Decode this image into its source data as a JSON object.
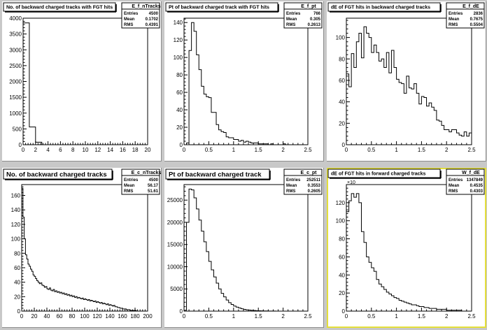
{
  "canvas": {
    "background": "#c8c8c8",
    "highlight_color": "#e4df3a"
  },
  "chart_data": [
    {
      "type": "bar",
      "name": "E_f_nTracks",
      "title": "No. of backward charged tracks with FGT hits",
      "stats": {
        "name": "E_f_nTracks",
        "entries": "4500",
        "mean": "0.1702",
        "rms": "0.4391"
      },
      "xlim": [
        0,
        20
      ],
      "ylim": [
        0,
        4000
      ],
      "x_ticks": [
        0,
        2,
        4,
        6,
        8,
        10,
        12,
        14,
        16,
        18,
        20
      ],
      "y_ticks": [
        0,
        500,
        1000,
        1500,
        2000,
        2500,
        3000,
        3500,
        4000
      ],
      "bin_edges": [
        0,
        1,
        2,
        3,
        4,
        5,
        6,
        7,
        8,
        9,
        10,
        11,
        12,
        13,
        14,
        15,
        16,
        17,
        18,
        19,
        20
      ],
      "values": [
        3850,
        560,
        80,
        0,
        0,
        0,
        0,
        0,
        0,
        0,
        0,
        0,
        0,
        0,
        0,
        0,
        0,
        0,
        0,
        0
      ]
    },
    {
      "type": "bar",
      "name": "E_f_pt",
      "title": "Pt of backward charged track with FGT hits",
      "stats": {
        "name": "E_f_pt",
        "entries": "766",
        "mean": "0.305",
        "rms": "0.2613"
      },
      "xlim": [
        0,
        2.5
      ],
      "ylim": [
        0,
        145
      ],
      "x_ticks": [
        0,
        0.5,
        1,
        1.5,
        2,
        2.5
      ],
      "y_ticks": [
        0,
        20,
        40,
        60,
        80,
        100,
        120,
        140
      ],
      "bin_start": 0,
      "bin_width": 0.05,
      "values": [
        0,
        2,
        108,
        140,
        130,
        103,
        86,
        67,
        58,
        55,
        54,
        37,
        37,
        23,
        17,
        15,
        14,
        9,
        8,
        8,
        6,
        6,
        4,
        5,
        3,
        4,
        3,
        2,
        2,
        2,
        1,
        1,
        1,
        1,
        0,
        1,
        0,
        0,
        0,
        0,
        1,
        0,
        0,
        0,
        0,
        0,
        0,
        0,
        0,
        0
      ]
    },
    {
      "type": "bar",
      "name": "E_f_dE",
      "title": "dE of FGT hits in backward charged tracks",
      "stats": {
        "name": "E_f_dE",
        "entries": "2836",
        "mean": "0.7675",
        "rms": "0.5504"
      },
      "xlim": [
        0,
        2.5
      ],
      "ylim": [
        0,
        118
      ],
      "x_ticks": [
        0,
        0.5,
        1,
        1.5,
        2,
        2.5
      ],
      "y_ticks": [
        0,
        20,
        40,
        60,
        80,
        100
      ],
      "bin_start": 0,
      "bin_width": 0.05,
      "values": [
        66,
        54,
        85,
        72,
        96,
        104,
        81,
        110,
        104,
        100,
        86,
        93,
        86,
        78,
        80,
        72,
        86,
        67,
        88,
        72,
        61,
        58,
        57,
        48,
        64,
        53,
        52,
        57,
        48,
        38,
        45,
        44,
        36,
        39,
        35,
        32,
        23,
        22,
        18,
        14,
        14,
        12,
        14,
        14,
        11,
        9,
        8,
        12,
        8,
        11
      ]
    },
    {
      "type": "bar",
      "name": "E_c_nTracks",
      "title": "No. of backward charged tracks",
      "stats": {
        "name": "E_c_nTracks",
        "entries": "4500",
        "mean": "56.17",
        "rms": "51.61"
      },
      "xlim": [
        0,
        200
      ],
      "ylim": [
        0,
        175
      ],
      "x_ticks": [
        0,
        20,
        40,
        60,
        80,
        100,
        120,
        140,
        160,
        180,
        200
      ],
      "y_ticks": [
        0,
        20,
        40,
        60,
        80,
        100,
        120,
        140,
        160
      ],
      "bin_start": 0,
      "bin_width": 2,
      "values": [
        170,
        130,
        100,
        78,
        72,
        65,
        62,
        58,
        55,
        50,
        48,
        45,
        42,
        40,
        38,
        39,
        36,
        35,
        33,
        34,
        31,
        30,
        32,
        29,
        28,
        30,
        27,
        28,
        26,
        27,
        25,
        26,
        24,
        25,
        23,
        24,
        22,
        23,
        21,
        22,
        20,
        21,
        19,
        20,
        18,
        19,
        18,
        17,
        18,
        16,
        17,
        16,
        15,
        16,
        14,
        15,
        14,
        13,
        14,
        12,
        13,
        12,
        11,
        12,
        10,
        11,
        10,
        9,
        10,
        8,
        9,
        8,
        7,
        8,
        6,
        6,
        5,
        5,
        4,
        4,
        3,
        3,
        3,
        2,
        2,
        2,
        1,
        1,
        1,
        1,
        1,
        0,
        0,
        0,
        0,
        0,
        0,
        0,
        0,
        0
      ]
    },
    {
      "type": "bar",
      "name": "E_c_pt",
      "title": "Pt of backward charged track",
      "stats": {
        "name": "E_c_pt",
        "entries": "252511",
        "mean": "0.3553",
        "rms": "0.2605"
      },
      "xlim": [
        0,
        2.5
      ],
      "ylim": [
        0,
        28500
      ],
      "x_ticks": [
        0,
        0.5,
        1,
        1.5,
        2,
        2.5
      ],
      "y_ticks": [
        0,
        5000,
        10000,
        15000,
        20000,
        25000
      ],
      "bin_start": 0,
      "bin_width": 0.05,
      "values": [
        200,
        20000,
        27500,
        27300,
        25500,
        23000,
        20500,
        18000,
        15600,
        13400,
        11200,
        9300,
        7700,
        6300,
        5000,
        4000,
        3200,
        2500,
        1900,
        1500,
        1150,
        900,
        700,
        530,
        400,
        300,
        230,
        170,
        130,
        100,
        75,
        55,
        40,
        30,
        22,
        16,
        12,
        9,
        7,
        5,
        4,
        3,
        2,
        2,
        1,
        1,
        1,
        0,
        0,
        0
      ]
    },
    {
      "type": "bar",
      "name": "W_f_dE",
      "title": "dE of FGT hits in forward charged tracks",
      "stats": {
        "name": "W_f_dE",
        "entries": "1347849",
        "mean": "0.4535",
        "rms": "0.4303"
      },
      "y_multiplier_label": "×10",
      "xlim": [
        0,
        2.5
      ],
      "ylim": [
        0,
        140
      ],
      "x_ticks": [
        0,
        0.5,
        1,
        1.5,
        2,
        2.5
      ],
      "y_ticks": [
        0,
        20,
        40,
        60,
        80,
        100,
        120
      ],
      "bin_start": 0,
      "bin_width": 0.05,
      "values": [
        110,
        122,
        130,
        126,
        130,
        120,
        88,
        76,
        60,
        54,
        48,
        44,
        35,
        30,
        27,
        24,
        21,
        19,
        17,
        15,
        14,
        12,
        11,
        10,
        9,
        8,
        7,
        7,
        6,
        5,
        5,
        4,
        4,
        3,
        3,
        3,
        2,
        2,
        2,
        2,
        1,
        1,
        1,
        1,
        1,
        1,
        0,
        0,
        0,
        0
      ]
    }
  ]
}
